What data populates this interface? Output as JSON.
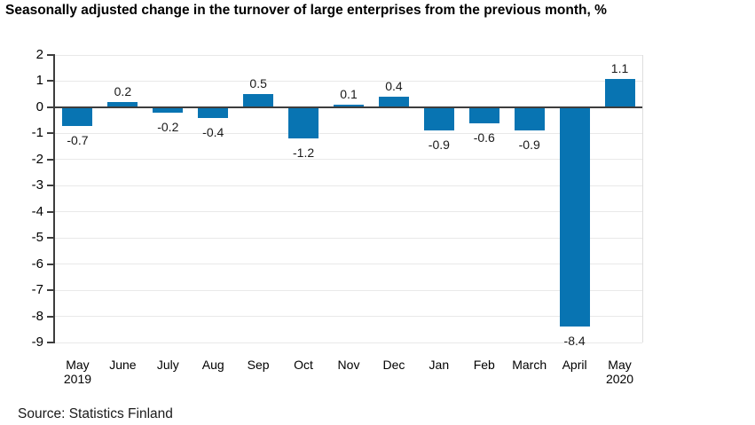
{
  "title": "Seasonally adjusted change in the turnover of large enterprises from the previous month, %",
  "source": "Source: Statistics Finland",
  "colors": {
    "bar": "#0874b2",
    "grid": "#e9e9e9",
    "axis": "#3d3d3d",
    "text": "#000000"
  },
  "chart_data": {
    "type": "bar",
    "title": "Seasonally adjusted change in the turnover of large enterprises from the previous month, %",
    "categories": [
      "May 2019",
      "June",
      "July",
      "Aug",
      "Sep",
      "Oct",
      "Nov",
      "Dec",
      "Jan",
      "Feb",
      "March",
      "April",
      "May 2020"
    ],
    "category_label_lines": [
      [
        "May",
        "2019"
      ],
      [
        "June"
      ],
      [
        "July"
      ],
      [
        "Aug"
      ],
      [
        "Sep"
      ],
      [
        "Oct"
      ],
      [
        "Nov"
      ],
      [
        "Dec"
      ],
      [
        "Jan"
      ],
      [
        "Feb"
      ],
      [
        "March"
      ],
      [
        "April"
      ],
      [
        "May",
        "2020"
      ]
    ],
    "values": [
      -0.7,
      0.2,
      -0.2,
      -0.4,
      0.5,
      -1.2,
      0.1,
      0.4,
      -0.9,
      -0.6,
      -0.9,
      -8.4,
      1.1
    ],
    "data_labels": [
      "-0.7",
      "0.2",
      "-0.2",
      "-0.4",
      "0.5",
      "-1.2",
      "0.1",
      "0.4",
      "-0.9",
      "-0.6",
      "-0.9",
      "-8.4",
      "1.1"
    ],
    "xlabel": "",
    "ylabel": "",
    "ylim": [
      -9,
      2
    ],
    "yticks": [
      2,
      1,
      0,
      -1,
      -2,
      -3,
      -4,
      -5,
      -6,
      -7,
      -8,
      -9
    ],
    "grid": "horizontal",
    "legend": "none",
    "bar_color": "#0874b2",
    "source": "Source: Statistics Finland"
  }
}
